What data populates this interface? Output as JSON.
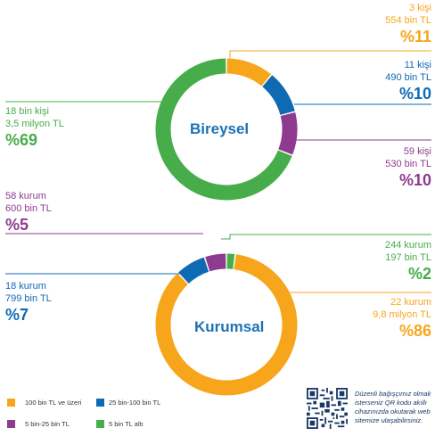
{
  "colors": {
    "orange": "#f7a61b",
    "blue": "#0f6ab4",
    "purple": "#8e3a8e",
    "green": "#46ad4a",
    "title": "#1a73b5"
  },
  "chart_data": [
    {
      "type": "pie",
      "title": "Bireysel",
      "slices": [
        {
          "key": "orange",
          "count": "3 kişi",
          "amount": "554 bin TL",
          "percent_label": "%11",
          "value": 11
        },
        {
          "key": "blue",
          "count": "11 kişi",
          "amount": "490 bin TL",
          "percent_label": "%10",
          "value": 10
        },
        {
          "key": "purple",
          "count": "59 kişi",
          "amount": "530 bin TL",
          "percent_label": "%10",
          "value": 10
        },
        {
          "key": "green",
          "count": "18 bin kişi",
          "amount": "3,5 milyon TL",
          "percent_label": "%69",
          "value": 69
        }
      ]
    },
    {
      "type": "pie",
      "title": "Kurumsal",
      "slices": [
        {
          "key": "green",
          "count": "244 kurum",
          "amount": "197 bin TL",
          "percent_label": "%2",
          "value": 2
        },
        {
          "key": "orange",
          "count": "22 kurum",
          "amount": "9,8 milyon TL",
          "percent_label": "%86",
          "value": 86
        },
        {
          "key": "blue",
          "count": "18 kurum",
          "amount": "799 bin TL",
          "percent_label": "%7",
          "value": 7
        },
        {
          "key": "purple",
          "count": "58 kurum",
          "amount": "600 bin TL",
          "percent_label": "%5",
          "value": 5
        }
      ]
    }
  ],
  "legend": [
    {
      "key": "orange",
      "label": "100 bin TL ve üzeri"
    },
    {
      "key": "blue",
      "label": "25 bin-100 bin TL"
    },
    {
      "key": "purple",
      "label": "5 bin-25 bin TL"
    },
    {
      "key": "green",
      "label": "5 bin TL altı"
    }
  ],
  "qr_note": {
    "lines": [
      "Düzenli bağışçımız olmak",
      "isterseniz QR kodu akıllı",
      "cihazınızda okutarak web",
      "sitemize ulaşabilirsiniz."
    ]
  }
}
